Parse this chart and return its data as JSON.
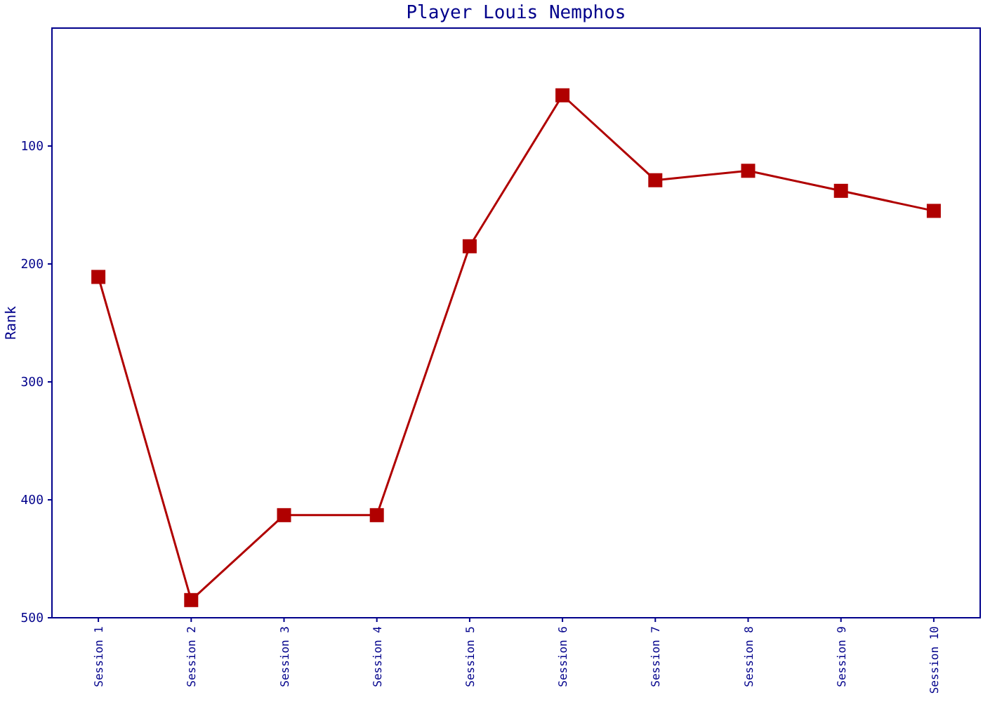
{
  "chart_data": {
    "type": "line",
    "title": "Player Louis Nemphos",
    "ylabel": "Rank",
    "categories": [
      "Session 1",
      "Session 2",
      "Session 3",
      "Session 4",
      "Session 5",
      "Session 6",
      "Session 7",
      "Session 8",
      "Session 9",
      "Session 10"
    ],
    "series": [
      {
        "color": "#b00000",
        "values": [
          211,
          485,
          413,
          413,
          185,
          57,
          129,
          121,
          138,
          155
        ]
      }
    ],
    "ylim": [
      500,
      0
    ],
    "yticks": [
      100,
      200,
      300,
      400,
      500
    ],
    "marker": "square",
    "line_style": "solid",
    "grid": false
  }
}
